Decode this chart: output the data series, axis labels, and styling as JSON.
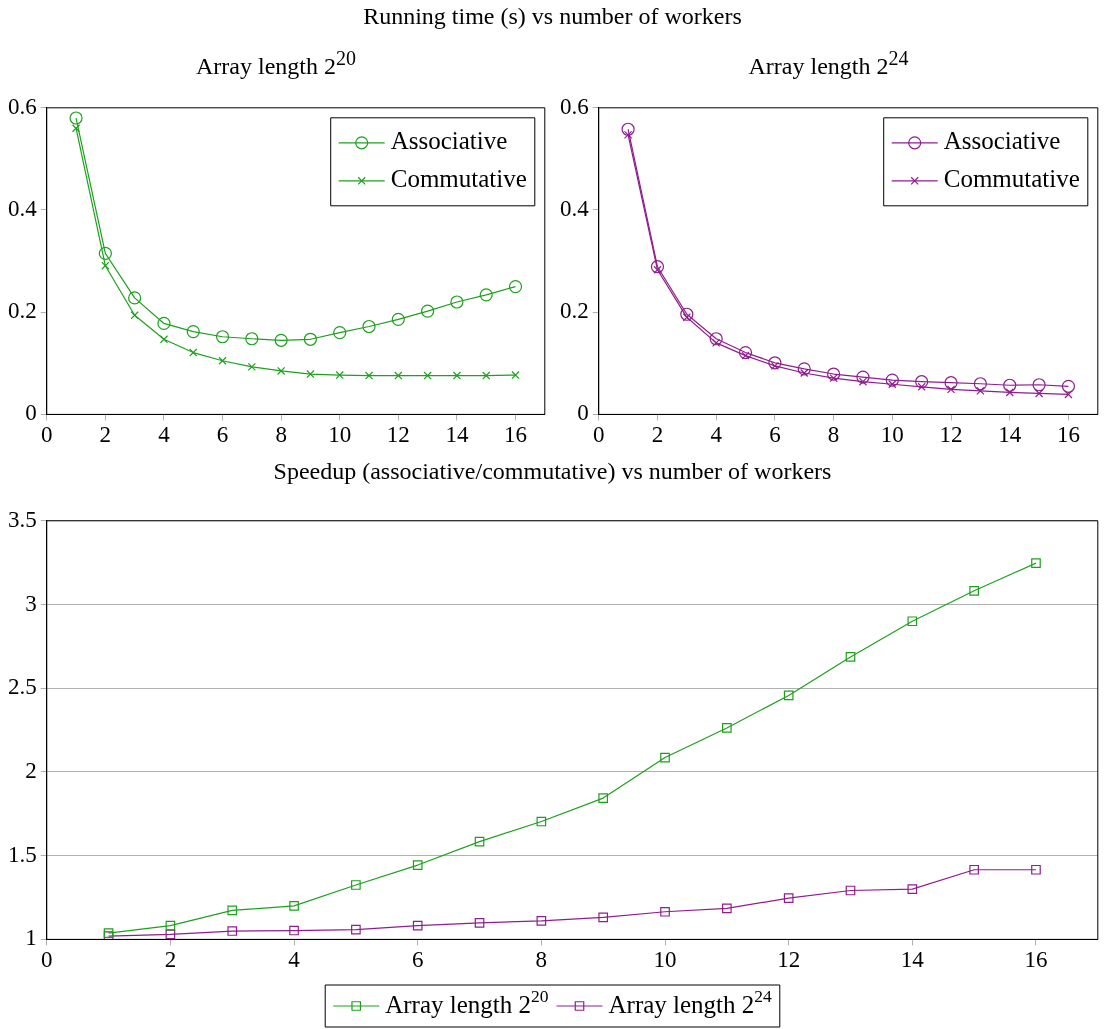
{
  "chart_data": [
    {
      "type": "line",
      "title": "Running time (s) vs number of workers",
      "subtitle": "Array length 2$^{20}$",
      "x": [
        1,
        2,
        3,
        4,
        5,
        6,
        7,
        8,
        9,
        10,
        11,
        12,
        13,
        14,
        15,
        16
      ],
      "series": [
        {
          "name": "Associative",
          "color": "#1ea01e",
          "marker": "circle",
          "values": [
            0.58,
            0.315,
            0.228,
            0.178,
            0.162,
            0.152,
            0.148,
            0.145,
            0.147,
            0.16,
            0.172,
            0.186,
            0.202,
            0.22,
            0.234,
            0.25
          ]
        },
        {
          "name": "Commutative",
          "color": "#1ea01e",
          "marker": "cross",
          "values": [
            0.56,
            0.291,
            0.194,
            0.147,
            0.121,
            0.105,
            0.093,
            0.085,
            0.079,
            0.077,
            0.076,
            0.076,
            0.076,
            0.076,
            0.076,
            0.077
          ]
        }
      ],
      "xlim": [
        0,
        17
      ],
      "xticks": [
        0,
        2,
        4,
        6,
        8,
        10,
        12,
        14,
        16
      ],
      "ylim": [
        0,
        0.6
      ],
      "yticks": [
        0,
        0.2,
        0.4,
        0.6
      ],
      "grid": false,
      "legend": "top right"
    },
    {
      "type": "line",
      "title": "Array length 2$^{24}$",
      "x": [
        1,
        2,
        3,
        4,
        5,
        6,
        7,
        8,
        9,
        10,
        11,
        12,
        13,
        14,
        15,
        16
      ],
      "series": [
        {
          "name": "Associative",
          "color": "#8e1e8e",
          "marker": "circle",
          "values": [
            0.558,
            0.289,
            0.196,
            0.148,
            0.121,
            0.101,
            0.089,
            0.079,
            0.073,
            0.067,
            0.064,
            0.062,
            0.06,
            0.057,
            0.058,
            0.055
          ]
        },
        {
          "name": "Commutative",
          "color": "#8e1e8e",
          "marker": "cross",
          "values": [
            0.547,
            0.283,
            0.19,
            0.14,
            0.115,
            0.095,
            0.081,
            0.071,
            0.064,
            0.059,
            0.054,
            0.049,
            0.046,
            0.043,
            0.041,
            0.039
          ]
        }
      ],
      "xlim": [
        0,
        17
      ],
      "xticks": [
        0,
        2,
        4,
        6,
        8,
        10,
        12,
        14,
        16
      ],
      "ylim": [
        0,
        0.6
      ],
      "yticks": [
        0,
        0.2,
        0.4,
        0.6
      ],
      "grid": false,
      "legend": "top right"
    },
    {
      "type": "line",
      "title": "Speedup (associative/commutative) vs number of workers",
      "x": [
        1,
        2,
        3,
        4,
        5,
        6,
        7,
        8,
        9,
        10,
        11,
        12,
        13,
        14,
        15,
        16
      ],
      "series": [
        {
          "name": "Array length 2$^{20}$",
          "color": "#1ea01e",
          "marker": "square",
          "values": [
            1.037,
            1.082,
            1.173,
            1.2,
            1.325,
            1.444,
            1.584,
            1.704,
            1.844,
            2.086,
            2.263,
            2.457,
            2.687,
            2.9,
            3.082,
            3.247
          ]
        },
        {
          "name": "Array length 2$^{24}$",
          "color": "#8e1e8e",
          "marker": "square",
          "values": [
            1.02,
            1.03,
            1.05,
            1.053,
            1.058,
            1.082,
            1.099,
            1.111,
            1.132,
            1.165,
            1.185,
            1.247,
            1.292,
            1.3,
            1.416,
            1.416
          ]
        }
      ],
      "xlim": [
        0,
        17
      ],
      "xticks": [
        0,
        2,
        4,
        6,
        8,
        10,
        12,
        14,
        16
      ],
      "ylim": [
        1,
        3.5
      ],
      "yticks": [
        1,
        1.5,
        2,
        2.5,
        3,
        3.5
      ],
      "grid": "y",
      "legend": "bottom"
    }
  ]
}
